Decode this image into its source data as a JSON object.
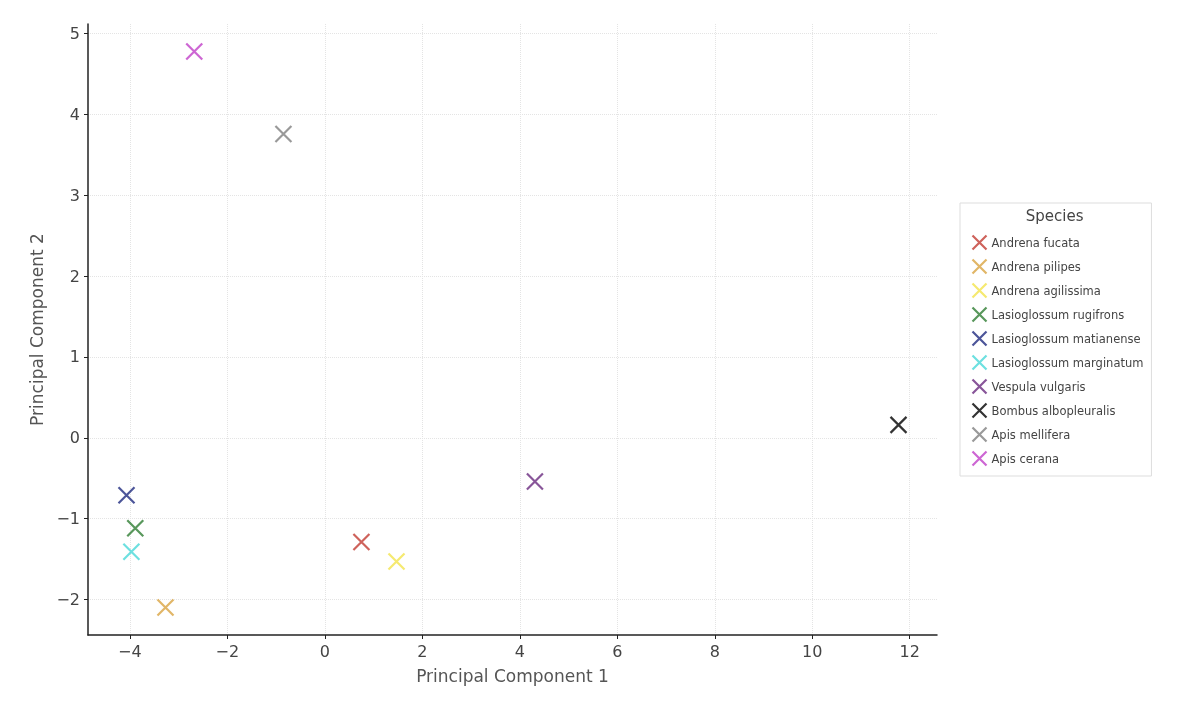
{
  "chart_data": {
    "type": "scatter",
    "xlabel": "Principal Component 1",
    "ylabel": "Principal Component 2",
    "legend_title": "Species",
    "legend": "right",
    "marker": "cross",
    "grid": true,
    "xlim": [
      -4.86,
      12.56
    ],
    "xticks": [
      -4,
      -2,
      0,
      2,
      4,
      6,
      8,
      10,
      12
    ],
    "ylim": [
      -2.44,
      5.12
    ],
    "yticks": [
      -2,
      -1,
      0,
      1,
      2,
      3,
      4,
      5
    ],
    "series": [
      {
        "name": "Andrena fucata",
        "color": "#c23b32",
        "x": [
          0.75
        ],
        "values": [
          -1.29
        ]
      },
      {
        "name": "Andrena pilipes",
        "color": "#d9a441",
        "x": [
          -3.27
        ],
        "values": [
          -2.1
        ]
      },
      {
        "name": "Andrena agilissima",
        "color": "#f2e34c",
        "x": [
          1.47
        ],
        "values": [
          -1.53
        ]
      },
      {
        "name": "Lasioglossum rugifrons",
        "color": "#2e7d32",
        "x": [
          -3.89
        ],
        "values": [
          -1.12
        ]
      },
      {
        "name": "Lasioglossum matianense",
        "color": "#1f2a80",
        "x": [
          -4.07
        ],
        "values": [
          -0.71
        ]
      },
      {
        "name": "Lasioglossum marginatum",
        "color": "#48d8d8",
        "x": [
          -3.97
        ],
        "values": [
          -1.41
        ]
      },
      {
        "name": "Vespula vulgaris",
        "color": "#6a2a80",
        "x": [
          4.31
        ],
        "values": [
          -0.54
        ]
      },
      {
        "name": "Bombus albopleuralis",
        "color": "#000000",
        "x": [
          11.77
        ],
        "values": [
          0.16
        ]
      },
      {
        "name": "Apis mellifera",
        "color": "#808080",
        "x": [
          -0.85
        ],
        "values": [
          3.76
        ]
      },
      {
        "name": "Apis cerana",
        "color": "#c040c8",
        "x": [
          -2.68
        ],
        "values": [
          4.78
        ]
      }
    ]
  }
}
